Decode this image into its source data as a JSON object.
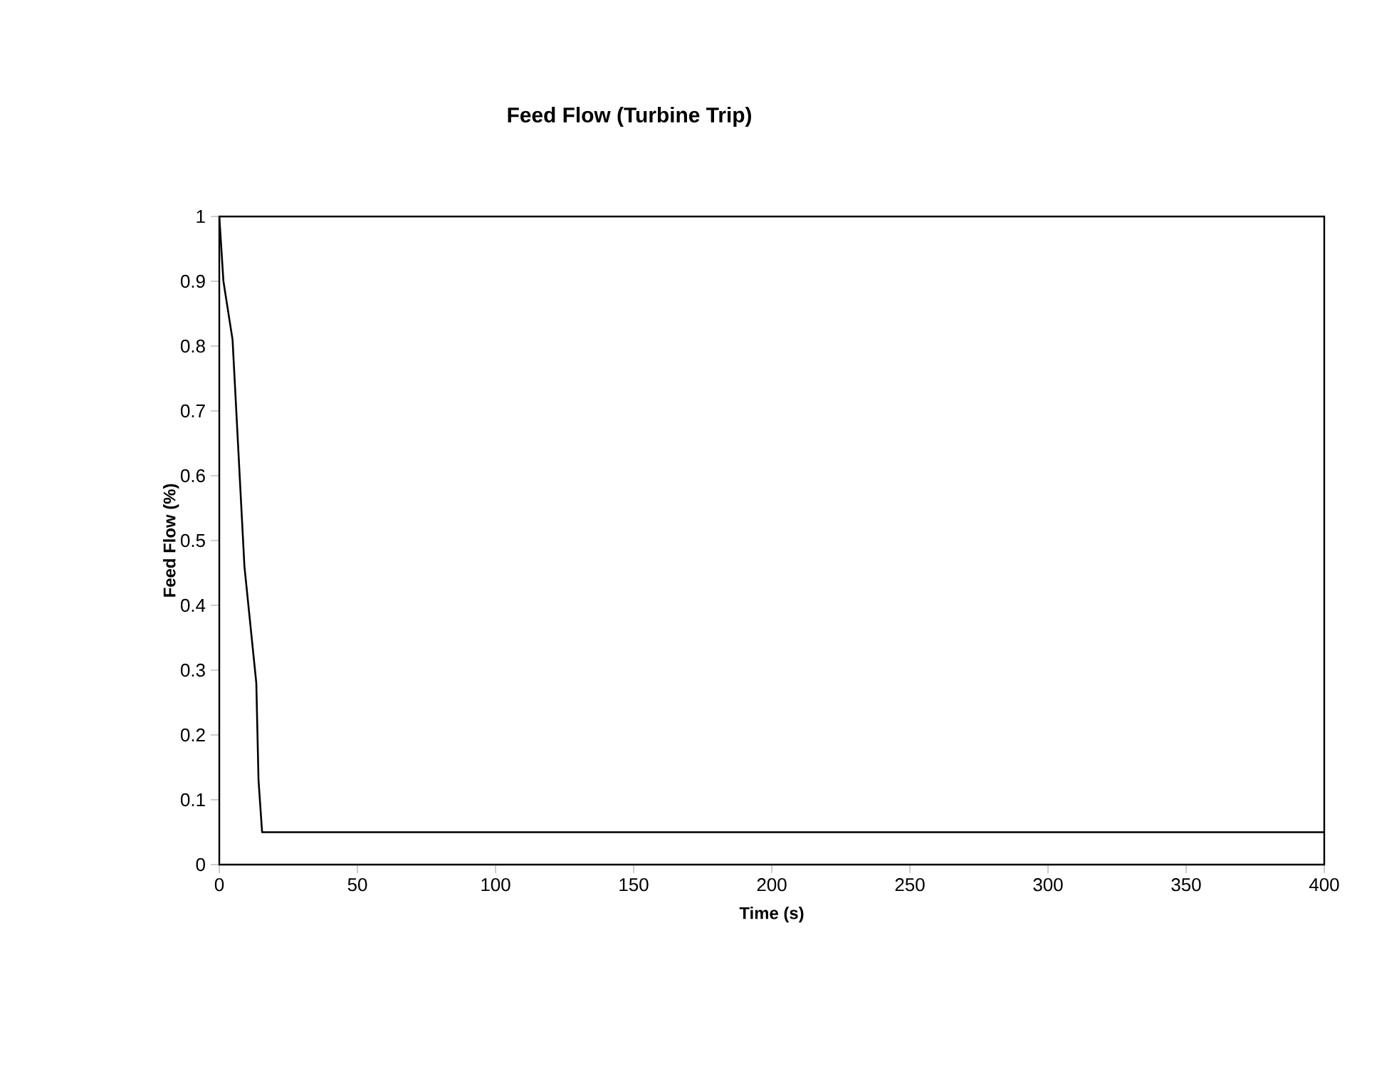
{
  "chart_data": {
    "type": "line",
    "title": "Feed Flow (Turbine Trip)",
    "xlabel": "Time (s)",
    "ylabel": "Feed Flow (%)",
    "x": [
      0,
      1.5,
      4.8,
      9.1,
      13.4,
      14.2,
      15.5,
      400
    ],
    "series": [
      {
        "color": "#000000",
        "values": [
          1,
          0.9,
          0.81,
          0.46,
          0.28,
          0.13,
          0.05,
          0.05
        ]
      }
    ],
    "xlim": [
      0,
      400
    ],
    "xticks": [
      0,
      50,
      100,
      150,
      200,
      250,
      300,
      350,
      400
    ],
    "ylim": [
      0,
      1
    ],
    "yticks": [
      0,
      0.1,
      0.2,
      0.3,
      0.4,
      0.5,
      0.6,
      0.7,
      0.8,
      0.9,
      1
    ],
    "grid": false,
    "marker": "none",
    "line_style": "solid"
  }
}
